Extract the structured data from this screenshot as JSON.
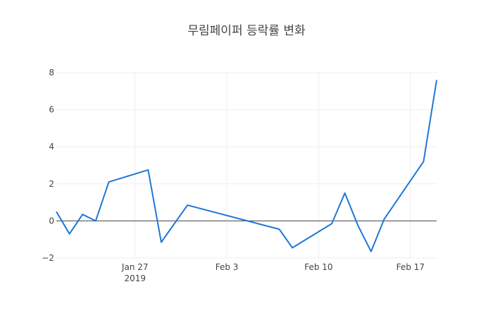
{
  "chart_data": {
    "type": "line",
    "title": "무림페이퍼 등락률 변화",
    "xlabel": "",
    "ylabel": "",
    "x": [
      "2019-01-21",
      "2019-01-22",
      "2019-01-23",
      "2019-01-24",
      "2019-01-25",
      "2019-01-28",
      "2019-01-29",
      "2019-01-31",
      "2019-02-07",
      "2019-02-08",
      "2019-02-11",
      "2019-02-12",
      "2019-02-13",
      "2019-02-14",
      "2019-02-15",
      "2019-02-18",
      "2019-02-19"
    ],
    "series": [
      {
        "name": "",
        "color": "#1f77d4",
        "values": [
          0.5,
          -0.7,
          0.35,
          0.0,
          2.1,
          2.75,
          -1.15,
          0.85,
          -0.45,
          -1.45,
          -0.15,
          1.5,
          -0.25,
          -1.65,
          0.1,
          3.2,
          7.6
        ]
      }
    ],
    "xlim": [
      "2019-01-21",
      "2019-02-19"
    ],
    "ylim": [
      -2,
      8
    ],
    "y_ticks": [
      -2,
      0,
      2,
      4,
      6,
      8
    ],
    "y_tick_labels": [
      "−2",
      "0",
      "2",
      "4",
      "6",
      "8"
    ],
    "x_ticks": [
      {
        "date": "2019-01-27",
        "label": "Jan 27",
        "sublabel": "2019"
      },
      {
        "date": "2019-02-03",
        "label": "Feb 3",
        "sublabel": ""
      },
      {
        "date": "2019-02-10",
        "label": "Feb 10",
        "sublabel": ""
      },
      {
        "date": "2019-02-17",
        "label": "Feb 17",
        "sublabel": ""
      }
    ],
    "grid": true,
    "zero_line": true
  }
}
